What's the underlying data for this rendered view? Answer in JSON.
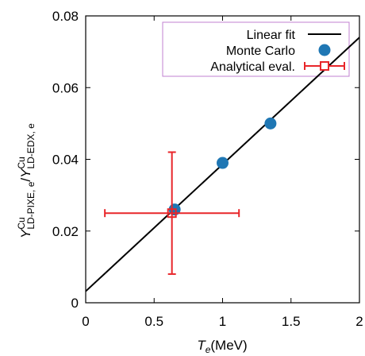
{
  "chart_data": {
    "type": "scatter",
    "x_label": {
      "main": "T",
      "sub": "e",
      "unit": "(MeV)"
    },
    "y_label": [
      "Y",
      "Cu",
      "LD-PIXE, e",
      "/",
      "Y",
      "Cu",
      "LD-EDX, e"
    ],
    "xlim": [
      0,
      2
    ],
    "xticks": [
      0,
      0.5,
      1,
      1.5,
      2
    ],
    "ylim": [
      0,
      0.08
    ],
    "yticks": [
      0,
      0.02,
      0.04,
      0.06,
      0.08
    ],
    "legend_position": "upper right",
    "series": [
      {
        "name": "Linear fit",
        "kind": "line",
        "color": "#000000",
        "x": [
          0,
          2
        ],
        "values": [
          0.0032,
          0.074
        ]
      },
      {
        "name": "Monte Carlo",
        "kind": "points",
        "color": "#1f77b4",
        "x": [
          0.65,
          1.0,
          1.35
        ],
        "values": [
          0.026,
          0.039,
          0.05
        ]
      },
      {
        "name": "Analytical eval.",
        "kind": "errorbar",
        "color": "#e8262a",
        "x": [
          0.63
        ],
        "values": [
          0.025
        ],
        "xerr": [
          0.49
        ],
        "yerr": [
          0.017
        ]
      }
    ]
  }
}
